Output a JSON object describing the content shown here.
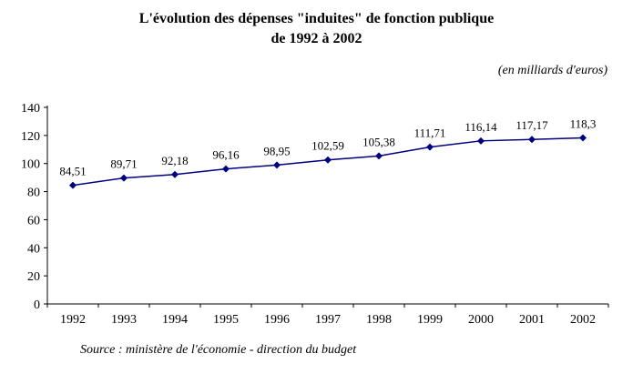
{
  "title": {
    "line1": "L'évolution des dépenses \"induites\" de fonction publique",
    "line2": "de 1992 à 2002"
  },
  "unit_note": "(en milliards d'euros)",
  "source": "Source : ministère de l'économie - direction du budget",
  "chart_data": {
    "type": "line",
    "categories": [
      "1992",
      "1993",
      "1994",
      "1995",
      "1996",
      "1997",
      "1998",
      "1999",
      "2000",
      "2001",
      "2002"
    ],
    "values": [
      84.51,
      89.71,
      92.18,
      96.16,
      98.95,
      102.59,
      105.38,
      111.71,
      116.14,
      117.17,
      118.3
    ],
    "value_labels": [
      "84,51",
      "89,71",
      "92,18",
      "96,16",
      "98,95",
      "102,59",
      "105,38",
      "111,71",
      "116,14",
      "117,17",
      "118,3"
    ],
    "title": "L'évolution des dépenses \"induites\" de fonction publique de 1992 à 2002",
    "xlabel": "",
    "ylabel": "",
    "ylim": [
      0,
      140
    ],
    "ytick_step": 20,
    "grid": false,
    "legend": "none",
    "line_color": "#000080",
    "marker": "diamond"
  }
}
